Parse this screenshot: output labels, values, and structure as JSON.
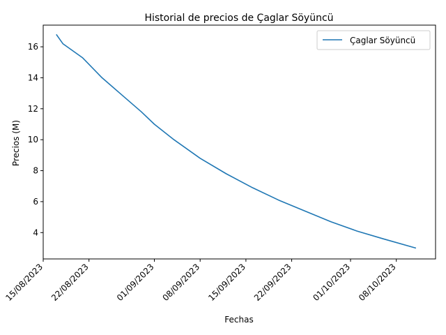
{
  "chart_data": {
    "type": "line",
    "title": "Historial de precios de Çaglar Söyüncü",
    "xlabel": "Fechas",
    "ylabel": "Precios (M)",
    "x_ticks": [
      "15/08/2023",
      "22/08/2023",
      "01/09/2023",
      "08/09/2023",
      "15/09/2023",
      "22/09/2023",
      "01/10/2023",
      "08/10/2023"
    ],
    "y_ticks": [
      4,
      6,
      8,
      10,
      12,
      14,
      16
    ],
    "xlim": [
      "2023-08-15",
      "2023-10-14"
    ],
    "ylim": [
      2.3,
      17.4
    ],
    "legend_position": "top-right",
    "series": [
      {
        "name": "Çaglar Söyüncü",
        "color": "#1f77b4",
        "points": [
          [
            "2023-08-17",
            16.8
          ],
          [
            "2023-08-18",
            16.2
          ],
          [
            "2023-08-21",
            15.3
          ],
          [
            "2023-08-24",
            14.0
          ],
          [
            "2023-08-27",
            12.9
          ],
          [
            "2023-08-30",
            11.8
          ],
          [
            "2023-09-01",
            11.0
          ],
          [
            "2023-09-04",
            10.0
          ],
          [
            "2023-09-08",
            8.8
          ],
          [
            "2023-09-12",
            7.8
          ],
          [
            "2023-09-16",
            6.9
          ],
          [
            "2023-09-20",
            6.1
          ],
          [
            "2023-09-24",
            5.4
          ],
          [
            "2023-09-28",
            4.7
          ],
          [
            "2023-10-02",
            4.1
          ],
          [
            "2023-10-06",
            3.6
          ],
          [
            "2023-10-11",
            3.0
          ]
        ]
      }
    ]
  }
}
